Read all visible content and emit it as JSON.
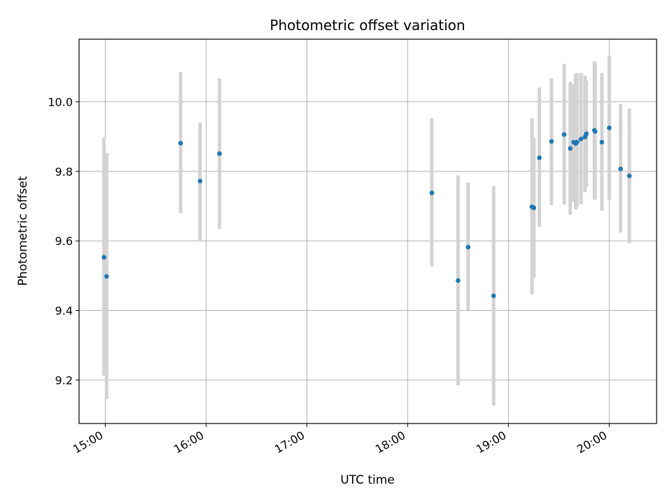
{
  "chart_data": {
    "type": "scatter",
    "title": "Photometric offset variation",
    "xlabel": "UTC time",
    "ylabel": "Photometric offset",
    "x_unit": "UTC hours",
    "xlim": [
      14.74,
      20.47
    ],
    "ylim": [
      9.075,
      10.18
    ],
    "grid": true,
    "x_ticks": [
      {
        "value": 15,
        "label": "15:00"
      },
      {
        "value": 16,
        "label": "16:00"
      },
      {
        "value": 17,
        "label": "17:00"
      },
      {
        "value": 18,
        "label": "18:00"
      },
      {
        "value": 19,
        "label": "19:00"
      },
      {
        "value": 20,
        "label": "20:00"
      }
    ],
    "y_ticks": [
      {
        "value": 9.2,
        "label": "9.2"
      },
      {
        "value": 9.4,
        "label": "9.4"
      },
      {
        "value": 9.6,
        "label": "9.6"
      },
      {
        "value": 9.8,
        "label": "9.8"
      },
      {
        "value": 10.0,
        "label": "10.0"
      }
    ],
    "colors": {
      "marker": "#1f77b4",
      "errorbar": "#d3d3d3",
      "grid": "#b0b0b0"
    },
    "points": [
      {
        "x": 14.987,
        "y": 9.553,
        "lo": 9.213,
        "hi": 9.897
      },
      {
        "x": 15.013,
        "y": 9.498,
        "lo": 9.145,
        "hi": 9.853
      },
      {
        "x": 15.747,
        "y": 9.881,
        "lo": 9.68,
        "hi": 10.085
      },
      {
        "x": 15.94,
        "y": 9.772,
        "lo": 9.6,
        "hi": 9.94
      },
      {
        "x": 16.133,
        "y": 9.851,
        "lo": 9.634,
        "hi": 10.067
      },
      {
        "x": 18.24,
        "y": 9.738,
        "lo": 9.527,
        "hi": 9.953
      },
      {
        "x": 18.5,
        "y": 9.486,
        "lo": 9.185,
        "hi": 9.788
      },
      {
        "x": 18.6,
        "y": 9.582,
        "lo": 9.401,
        "hi": 9.768
      },
      {
        "x": 18.853,
        "y": 9.442,
        "lo": 9.127,
        "hi": 9.758
      },
      {
        "x": 19.233,
        "y": 9.698,
        "lo": 9.446,
        "hi": 9.953
      },
      {
        "x": 19.253,
        "y": 9.695,
        "lo": 9.494,
        "hi": 9.897
      },
      {
        "x": 19.307,
        "y": 9.839,
        "lo": 9.64,
        "hi": 10.041
      },
      {
        "x": 19.427,
        "y": 9.886,
        "lo": 9.703,
        "hi": 10.067
      },
      {
        "x": 19.553,
        "y": 9.906,
        "lo": 9.705,
        "hi": 10.109
      },
      {
        "x": 19.613,
        "y": 9.866,
        "lo": 9.675,
        "hi": 10.057
      },
      {
        "x": 19.647,
        "y": 9.884,
        "lo": 9.713,
        "hi": 10.05
      },
      {
        "x": 19.667,
        "y": 9.88,
        "lo": 9.69,
        "hi": 10.08
      },
      {
        "x": 19.68,
        "y": 9.884,
        "lo": 9.698,
        "hi": 10.083
      },
      {
        "x": 19.72,
        "y": 9.893,
        "lo": 9.705,
        "hi": 10.083
      },
      {
        "x": 19.76,
        "y": 9.899,
        "lo": 9.74,
        "hi": 10.075
      },
      {
        "x": 19.773,
        "y": 9.908,
        "lo": 9.755,
        "hi": 10.06
      },
      {
        "x": 19.853,
        "y": 9.918,
        "lo": 9.718,
        "hi": 10.117
      },
      {
        "x": 19.86,
        "y": 9.915,
        "lo": 9.72,
        "hi": 10.11
      },
      {
        "x": 19.927,
        "y": 9.884,
        "lo": 9.687,
        "hi": 10.083
      },
      {
        "x": 20.0,
        "y": 9.925,
        "lo": 9.718,
        "hi": 10.133
      },
      {
        "x": 20.113,
        "y": 9.807,
        "lo": 9.624,
        "hi": 9.993
      },
      {
        "x": 20.2,
        "y": 9.787,
        "lo": 9.593,
        "hi": 9.981
      }
    ]
  }
}
